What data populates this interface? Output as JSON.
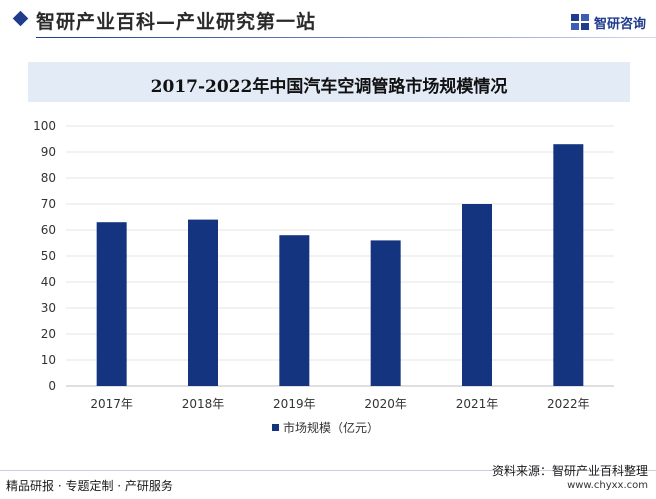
{
  "header": {
    "title": "智研产业百科—产业研究第一站",
    "brand": "智研咨询"
  },
  "chart_data": {
    "type": "bar",
    "title": "2017-2022年中国汽车空调管路市场规模情况",
    "categories": [
      "2017年",
      "2018年",
      "2019年",
      "2020年",
      "2021年",
      "2022年"
    ],
    "series": [
      {
        "name": "市场规模（亿元）",
        "values": [
          63,
          64,
          58,
          56,
          70,
          93
        ]
      }
    ],
    "ylim": [
      0,
      100
    ],
    "yticks": [
      "0",
      "10",
      "20",
      "30",
      "40",
      "50",
      "60",
      "70",
      "80",
      "90",
      "100"
    ],
    "grid": true,
    "legend": "bottom",
    "bar_color": "#14347f"
  },
  "footer": {
    "left": "精品研报 · 专题定制 · 产研服务",
    "source": "资料来源：智研产业百科整理",
    "url": "www.chyxx.com"
  }
}
